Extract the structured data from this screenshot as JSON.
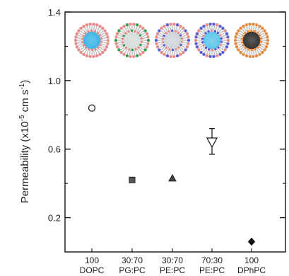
{
  "chart_data": {
    "type": "scatter",
    "ylabel_parts": [
      "Permeability (x10",
      "-5",
      " cm s",
      "-1",
      ")"
    ],
    "ylim": [
      0,
      1.4
    ],
    "yticks": [
      0.2,
      0.6,
      1.0,
      1.4
    ],
    "y_minor_ticks": [
      0.4,
      0.8,
      1.2
    ],
    "categories": [
      {
        "line1": "100",
        "line2": "DOPC"
      },
      {
        "line1": "30:70",
        "line2": "PG:PC"
      },
      {
        "line1": "30:70",
        "line2": "PE:PC"
      },
      {
        "line1": "70:30",
        "line2": "PE:PC"
      },
      {
        "line1": "100",
        "line2": "DPhPC"
      }
    ],
    "points": [
      {
        "category": "DOPC",
        "value": 0.84,
        "marker": "circle-open"
      },
      {
        "category": "PG:PC",
        "value": 0.42,
        "marker": "square-filled"
      },
      {
        "category": "PE:PC 30:70",
        "value": 0.43,
        "marker": "triangle-up-filled"
      },
      {
        "category": "PE:PC 70:30",
        "value": 0.64,
        "marker": "triangle-down-open",
        "err_low": 0.57,
        "err_high": 0.72
      },
      {
        "category": "DPhPC",
        "value": 0.06,
        "marker": "diamond-filled"
      }
    ],
    "vesicles": [
      {
        "headgroup_color": "#e88a8a",
        "alt_color": "#e88a8a",
        "core_color": "#3fb6e6"
      },
      {
        "headgroup_color": "#e88a8a",
        "alt_color": "#2e9e4a",
        "core_color": "#d8dcdc"
      },
      {
        "headgroup_color": "#e88a8a",
        "alt_color": "#5a5ad2",
        "core_color": "#cfd6da"
      },
      {
        "headgroup_color": "#5a5ad2",
        "alt_color": "#e88a8a",
        "core_color": "#5fc8ea"
      },
      {
        "headgroup_color": "#e8893a",
        "alt_color": "#e8893a",
        "core_color": "#333333"
      }
    ],
    "grid": false,
    "legend": "none"
  }
}
